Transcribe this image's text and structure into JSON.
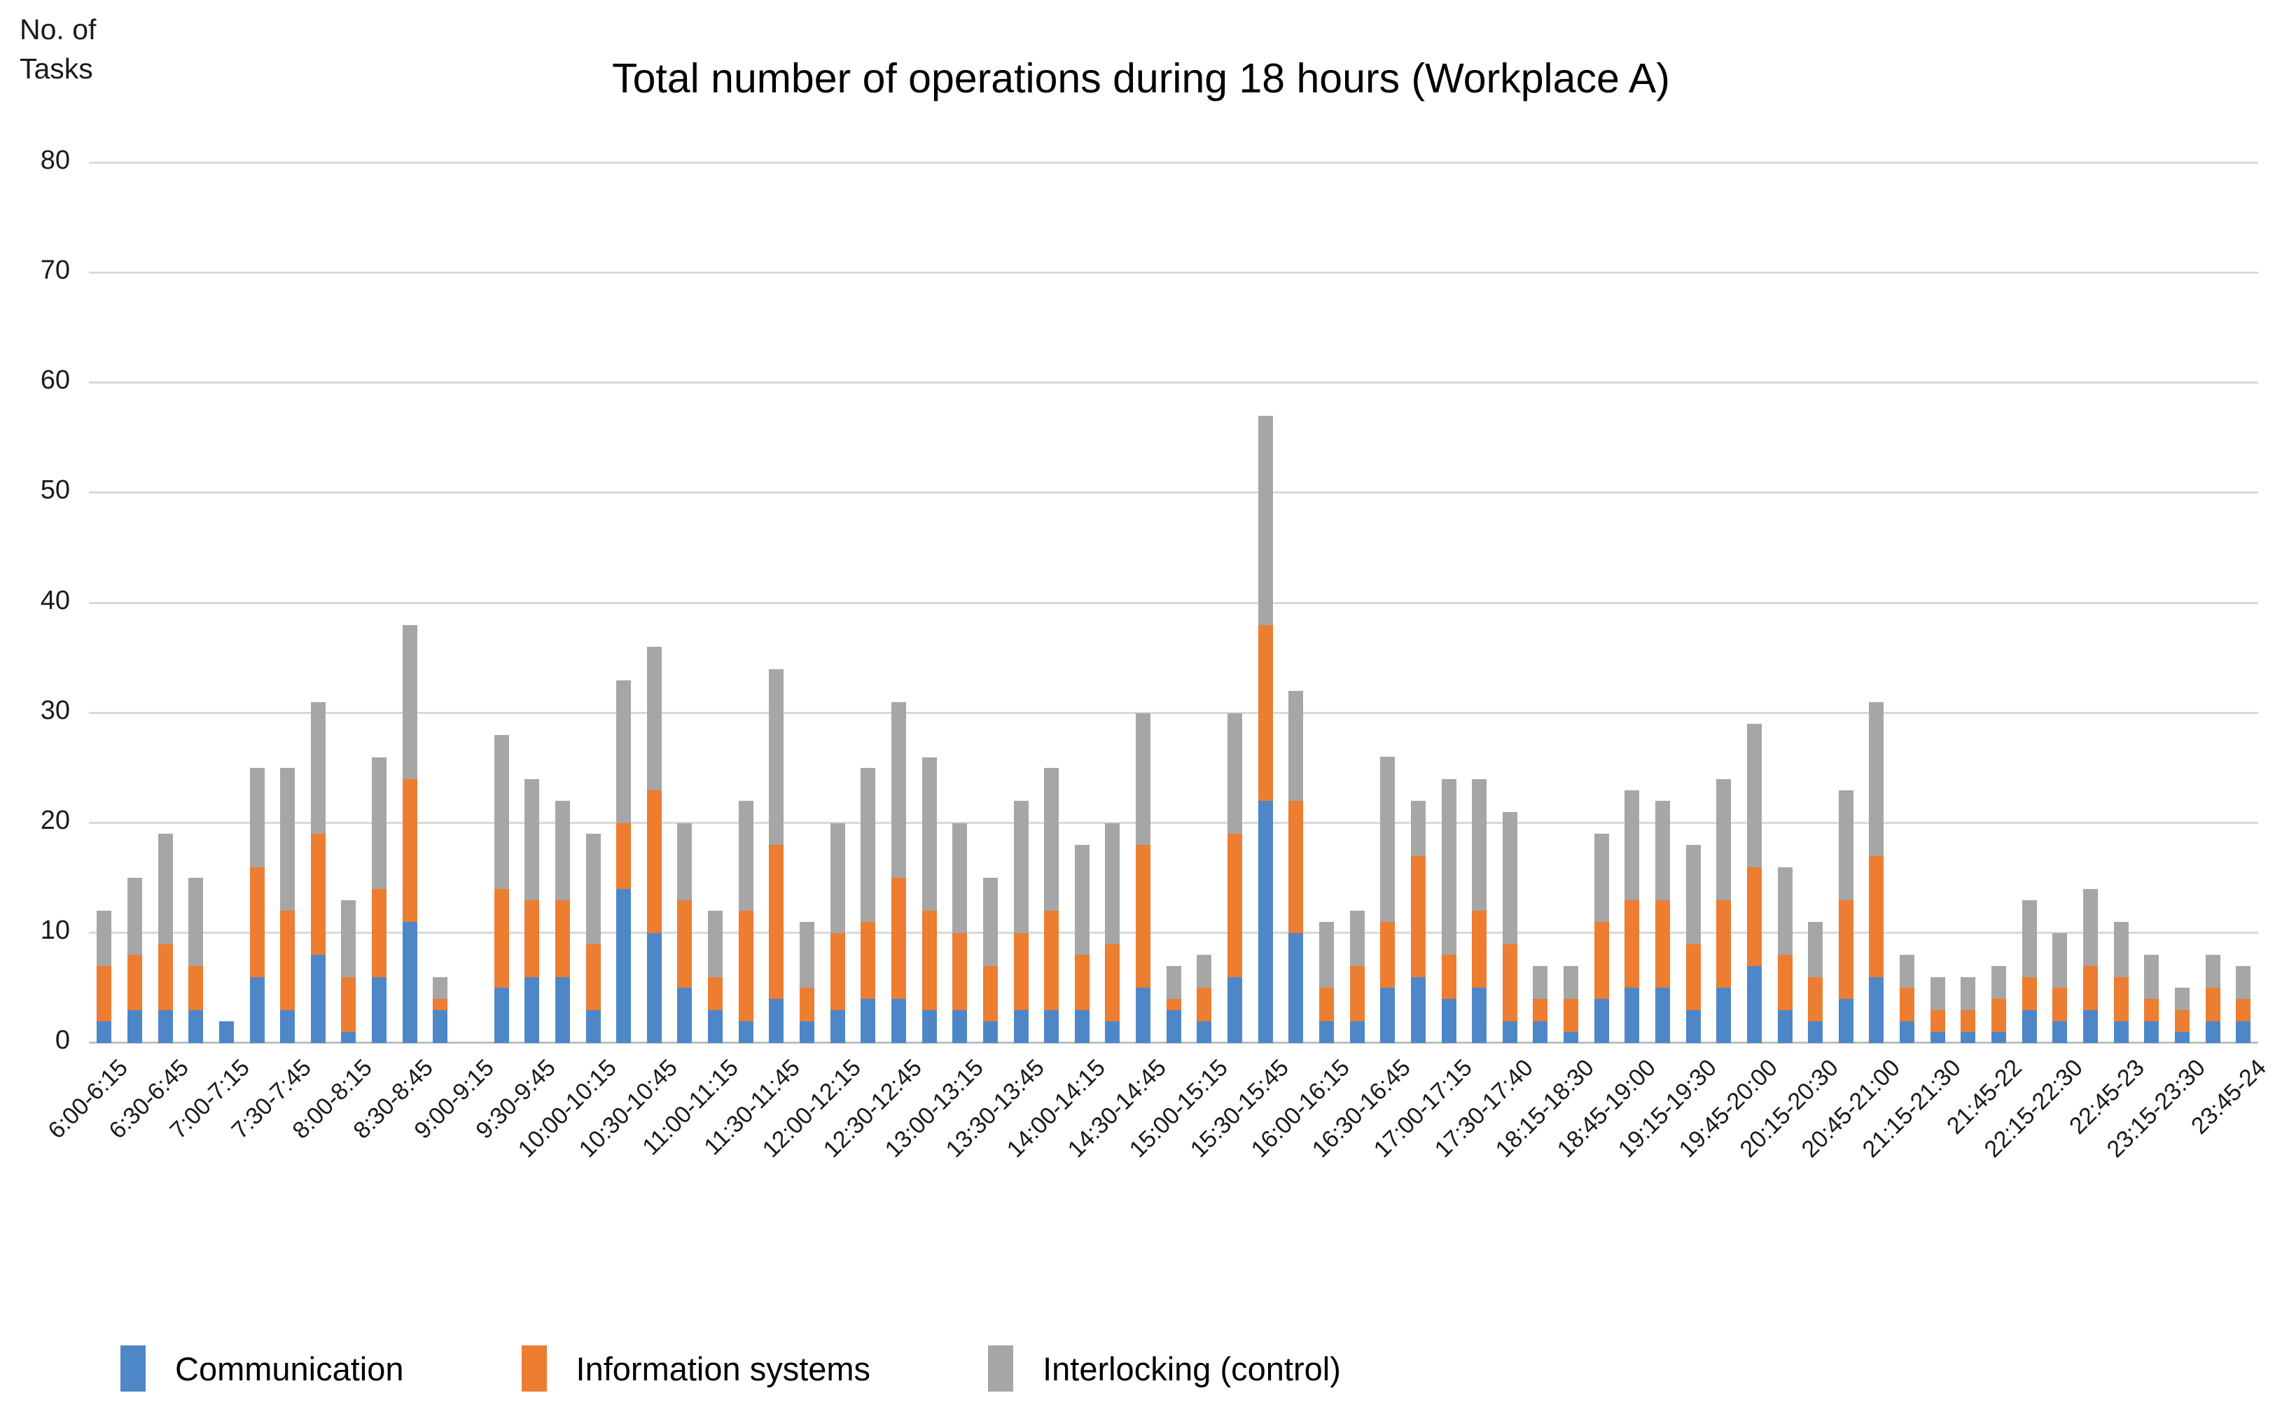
{
  "title": "Total number of operations during 18 hours (Workplace A)",
  "y_axis": {
    "label_line1": "No. of",
    "label_line2": "Tasks",
    "ticks": [
      80,
      70,
      60,
      50,
      40,
      30,
      20,
      10,
      0
    ],
    "max": 80
  },
  "legend": {
    "items": [
      {
        "label": "Communication",
        "color": "#4E87C7"
      },
      {
        "label": "Information systems",
        "color": "#ED7D31"
      },
      {
        "label": "Interlocking (control)",
        "color": "#A6A6A6"
      }
    ]
  },
  "chart_data": {
    "type": "bar",
    "stacked": true,
    "title": "Total number of operations during 18 hours (Workplace A)",
    "ylabel": "No. of Tasks",
    "ylim": [
      0,
      80
    ],
    "grid": true,
    "legend_position": "bottom",
    "slots": 71,
    "labels_on_every_other_slot": true,
    "x_tick_labels": [
      "6:00-6:15",
      "6:30-6:45",
      "7:00-7:15",
      "7:30-7:45",
      "8:00-8:15",
      "8:30-8:45",
      "9:00-9:15",
      "9:30-9:45",
      "10:00-10:15",
      "10:30-10:45",
      "11:00-11:15",
      "11:30-11:45",
      "12:00-12:15",
      "12:30-12:45",
      "13:00-13:15",
      "13:30-13:45",
      "14:00-14:15",
      "14:30-14:45",
      "15:00-15:15",
      "15:30-15:45",
      "16:00-16:15",
      "16:30-16:45",
      "17:00-17:15",
      "17:30-17:40",
      "18:15-18:30",
      "18:45-19:00",
      "19:15-19:30",
      "19:45-20:00",
      "20:15-20:30",
      "20:45-21:00",
      "21:15-21:30",
      "21:45-22",
      "22:15-22:30",
      "22:45-23",
      "23:15-23:30",
      "23:45-24"
    ],
    "series": [
      {
        "name": "Communication",
        "color": "#4E87C7",
        "values": [
          2,
          3,
          3,
          3,
          2,
          6,
          3,
          8,
          1,
          6,
          11,
          3,
          0,
          5,
          6,
          6,
          3,
          14,
          10,
          5,
          3,
          2,
          4,
          2,
          3,
          4,
          4,
          3,
          3,
          2,
          3,
          3,
          3,
          2,
          5,
          3,
          2,
          6,
          22,
          10,
          2,
          2,
          5,
          6,
          4,
          5,
          2,
          2,
          1,
          4,
          5,
          5,
          3,
          5,
          7,
          3,
          2,
          4,
          6,
          2,
          1,
          1,
          1,
          3,
          2,
          3,
          2,
          2,
          1,
          2,
          2
        ]
      },
      {
        "name": "Information systems",
        "color": "#ED7D31",
        "values": [
          5,
          5,
          6,
          4,
          0,
          10,
          9,
          11,
          5,
          8,
          13,
          1,
          0,
          9,
          7,
          7,
          6,
          6,
          13,
          8,
          3,
          10,
          14,
          3,
          7,
          7,
          11,
          9,
          7,
          5,
          7,
          9,
          5,
          7,
          13,
          1,
          3,
          13,
          16,
          12,
          3,
          5,
          6,
          11,
          4,
          7,
          7,
          2,
          3,
          7,
          8,
          8,
          6,
          8,
          9,
          5,
          4,
          9,
          11,
          3,
          2,
          2,
          3,
          3,
          3,
          4,
          4,
          2,
          2,
          3,
          2
        ]
      },
      {
        "name": "Interlocking (control)",
        "color": "#A6A6A6",
        "values": [
          5,
          7,
          10,
          8,
          0,
          9,
          13,
          12,
          7,
          12,
          14,
          2,
          0,
          14,
          11,
          9,
          10,
          13,
          13,
          7,
          6,
          10,
          16,
          6,
          10,
          14,
          16,
          14,
          10,
          8,
          12,
          13,
          10,
          11,
          12,
          3,
          3,
          11,
          19,
          10,
          6,
          5,
          15,
          5,
          16,
          12,
          12,
          3,
          3,
          8,
          10,
          9,
          9,
          11,
          13,
          8,
          5,
          10,
          14,
          3,
          3,
          3,
          3,
          7,
          5,
          7,
          5,
          4,
          2,
          3,
          3
        ]
      }
    ]
  }
}
